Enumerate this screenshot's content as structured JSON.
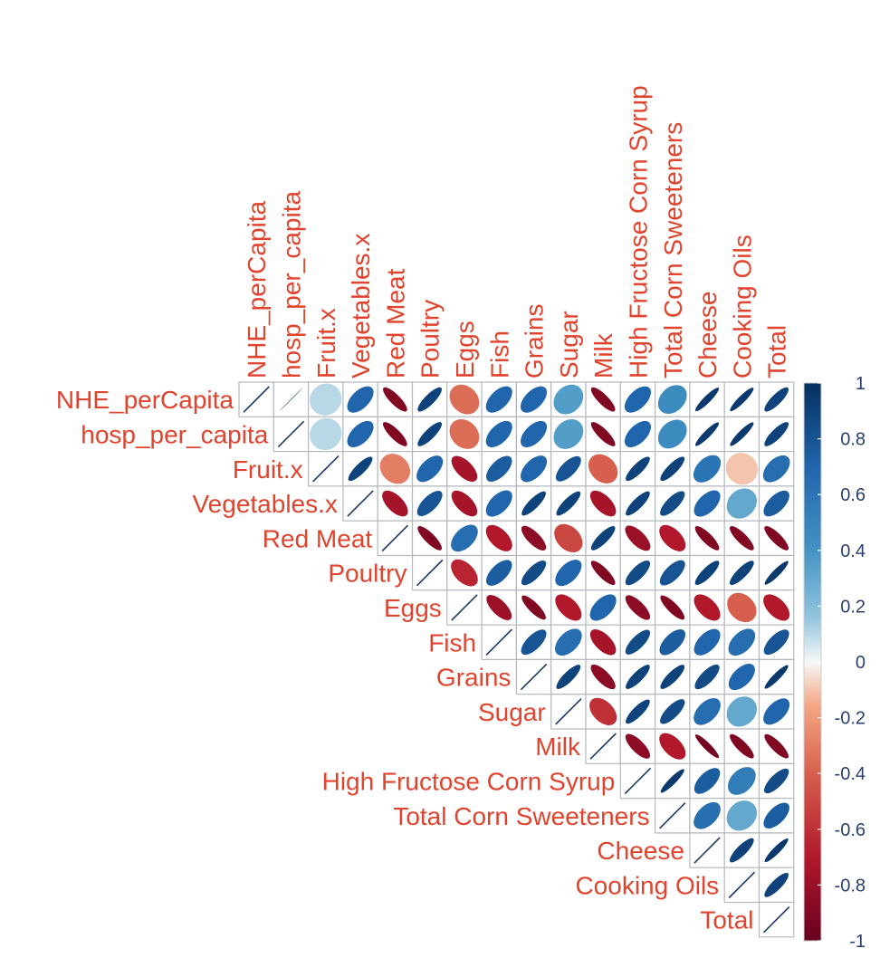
{
  "chart_data": {
    "type": "heatmap",
    "variables": [
      "NHE_perCapita",
      "hosp_per_capita",
      "Fruit.x",
      "Vegetables.x",
      "Red Meat",
      "Poultry",
      "Eggs",
      "Fish",
      "Grains",
      "Sugar",
      "Milk",
      "High Fructose Corn Syrup",
      "Total Corn Sweeteners",
      "Cheese",
      "Cooking Oils",
      "Total"
    ],
    "matrix_type": "upper triangle, ellipse glyphs",
    "matrix": [
      [
        1,
        1,
        0.1,
        0.7,
        -0.9,
        0.9,
        -0.35,
        0.7,
        0.7,
        0.35,
        -0.9,
        0.7,
        0.45,
        0.95,
        0.95,
        0.9
      ],
      [
        null,
        1,
        0.1,
        0.7,
        -0.9,
        0.9,
        -0.35,
        0.7,
        0.7,
        0.35,
        -0.9,
        0.7,
        0.45,
        0.95,
        0.95,
        0.9
      ],
      [
        null,
        null,
        1,
        0.9,
        -0.3,
        0.7,
        -0.75,
        0.75,
        0.7,
        0.8,
        -0.4,
        0.9,
        0.9,
        0.6,
        -0.1,
        0.65
      ],
      [
        null,
        null,
        null,
        1,
        -0.75,
        0.8,
        -0.75,
        0.7,
        0.9,
        0.9,
        -0.75,
        0.9,
        0.85,
        0.7,
        0.3,
        0.75
      ],
      [
        null,
        null,
        null,
        null,
        1,
        -0.9,
        0.65,
        -0.7,
        -0.85,
        -0.5,
        0.9,
        -0.8,
        -0.7,
        -0.9,
        -0.9,
        -0.9
      ],
      [
        null,
        null,
        null,
        null,
        null,
        1,
        -0.65,
        0.75,
        0.85,
        0.7,
        -0.9,
        0.85,
        0.8,
        0.9,
        0.9,
        0.95
      ],
      [
        null,
        null,
        null,
        null,
        null,
        null,
        1,
        -0.8,
        -0.9,
        -0.7,
        0.7,
        -0.85,
        -0.9,
        -0.7,
        -0.4,
        -0.7
      ],
      [
        null,
        null,
        null,
        null,
        null,
        null,
        null,
        1,
        0.8,
        0.65,
        -0.75,
        0.85,
        0.75,
        0.7,
        0.65,
        0.8
      ],
      [
        null,
        null,
        null,
        null,
        null,
        null,
        null,
        null,
        1,
        0.9,
        -0.85,
        0.9,
        0.9,
        0.85,
        0.7,
        0.95
      ],
      [
        null,
        null,
        null,
        null,
        null,
        null,
        null,
        null,
        null,
        1,
        -0.6,
        0.9,
        0.85,
        0.65,
        0.3,
        0.7
      ],
      [
        null,
        null,
        null,
        null,
        null,
        null,
        null,
        null,
        null,
        null,
        1,
        -0.85,
        -0.7,
        -0.95,
        -0.9,
        -0.9
      ],
      [
        null,
        null,
        null,
        null,
        null,
        null,
        null,
        null,
        null,
        null,
        null,
        1,
        0.95,
        0.75,
        0.55,
        0.85
      ],
      [
        null,
        null,
        null,
        null,
        null,
        null,
        null,
        null,
        null,
        null,
        null,
        null,
        1,
        0.65,
        0.3,
        0.75
      ],
      [
        null,
        null,
        null,
        null,
        null,
        null,
        null,
        null,
        null,
        null,
        null,
        null,
        null,
        1,
        0.9,
        0.95
      ],
      [
        null,
        null,
        null,
        null,
        null,
        null,
        null,
        null,
        null,
        null,
        null,
        null,
        null,
        null,
        1,
        0.9
      ],
      [
        null,
        null,
        null,
        null,
        null,
        null,
        null,
        null,
        null,
        null,
        null,
        null,
        null,
        null,
        null,
        1
      ]
    ],
    "colorbar": {
      "range": [
        -1,
        1
      ],
      "ticks": [
        "1",
        "0.8",
        "0.6",
        "0.4",
        "0.2",
        "0",
        "-0.2",
        "-0.4",
        "-0.6",
        "-0.8",
        "-1"
      ],
      "palette_positive": "#1f4e86",
      "palette_mid": "#f7f7f7",
      "palette_negative": "#7a0c22"
    },
    "label_color": "#e0442e",
    "grid": true
  }
}
